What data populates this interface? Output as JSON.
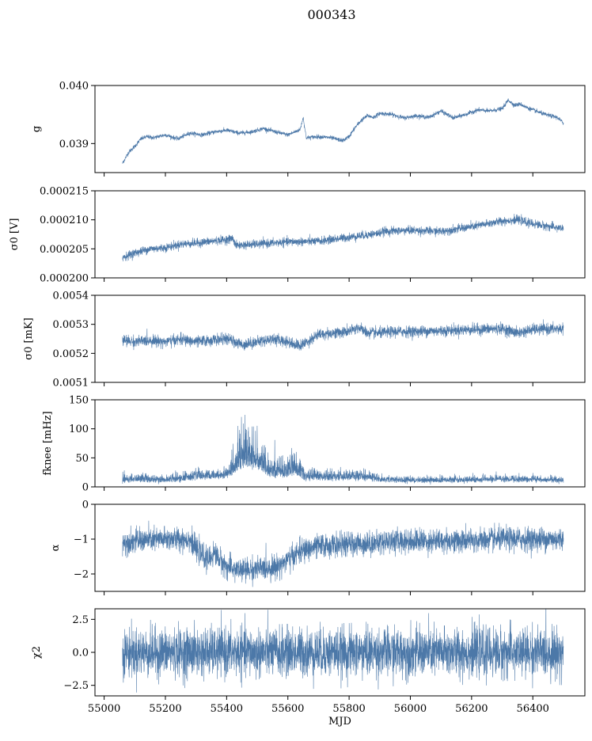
{
  "figure": {
    "title": "000343"
  },
  "colors": {
    "series": "#4c78a8",
    "frame": "#000000",
    "background": "#ffffff"
  },
  "chart_data": [
    {
      "type": "line",
      "ylabel": "g",
      "ylim": [
        0.0385,
        0.04
      ],
      "yticks": [
        0.039,
        0.04
      ],
      "ytick_labels": [
        "0.039",
        "0.040"
      ],
      "xlim": [
        54970,
        56570
      ],
      "xticks": [
        55000,
        55200,
        55400,
        55600,
        55800,
        56000,
        56200,
        56400
      ],
      "xtick_labels": [],
      "grid": false,
      "series": [
        {
          "x": [
            55060,
            55080,
            55100,
            55120,
            55140,
            55160,
            55200,
            55240,
            55280,
            55320,
            55360,
            55400,
            55440,
            55480,
            55520,
            55560,
            55600,
            55640,
            55650,
            55660,
            55700,
            55740,
            55780,
            55800,
            55820,
            55840,
            55860,
            55880,
            55900,
            55940,
            55980,
            56020,
            56060,
            56100,
            56140,
            56180,
            56220,
            56260,
            56300,
            56320,
            56340,
            56360,
            56380,
            56400,
            56440,
            56480,
            56500
          ],
          "y": [
            0.03866,
            0.03885,
            0.03895,
            0.03908,
            0.03912,
            0.0391,
            0.03915,
            0.03908,
            0.03918,
            0.03915,
            0.0392,
            0.03923,
            0.03918,
            0.0392,
            0.03926,
            0.0392,
            0.03915,
            0.03924,
            0.03945,
            0.0391,
            0.03912,
            0.0391,
            0.03905,
            0.03912,
            0.03928,
            0.0394,
            0.03948,
            0.03945,
            0.03952,
            0.0395,
            0.03944,
            0.03948,
            0.03945,
            0.03956,
            0.03944,
            0.0395,
            0.03958,
            0.03956,
            0.0396,
            0.03975,
            0.03966,
            0.03968,
            0.03962,
            0.03958,
            0.0395,
            0.03945,
            0.03935
          ]
        }
      ],
      "noise": 3e-05
    },
    {
      "type": "line",
      "ylabel": "σ0 [V]",
      "ylim": [
        0.0002,
        0.000215
      ],
      "yticks": [
        0.0002,
        0.000205,
        0.00021,
        0.000215
      ],
      "ytick_labels": [
        "0.000200",
        "0.000205",
        "0.000210",
        "0.000215"
      ],
      "xlim": [
        54970,
        56570
      ],
      "xticks": [
        55000,
        55200,
        55400,
        55600,
        55800,
        56000,
        56200,
        56400
      ],
      "xtick_labels": [],
      "grid": false,
      "series": [
        {
          "x": [
            55060,
            55100,
            55150,
            55200,
            55250,
            55300,
            55350,
            55400,
            55420,
            55430,
            55500,
            55600,
            55700,
            55800,
            55900,
            55910,
            56000,
            56100,
            56200,
            56300,
            56350,
            56400,
            56500
          ],
          "y": [
            0.0002035,
            0.0002043,
            0.000205,
            0.0002052,
            0.0002058,
            0.000206,
            0.0002063,
            0.0002066,
            0.0002068,
            0.0002056,
            0.0002058,
            0.0002062,
            0.0002063,
            0.000207,
            0.0002077,
            0.000208,
            0.0002082,
            0.000208,
            0.0002088,
            0.0002098,
            0.00021,
            0.0002093,
            0.0002085
          ]
        }
      ],
      "noise": 6e-07
    },
    {
      "type": "line",
      "ylabel": "σ0 [mK]",
      "ylim": [
        0.0051,
        0.0054
      ],
      "yticks": [
        0.0051,
        0.0052,
        0.0053,
        0.0054
      ],
      "ytick_labels": [
        "0.0051",
        "0.0052",
        "0.0053",
        "0.0054"
      ],
      "xlim": [
        54970,
        56570
      ],
      "xticks": [
        55000,
        55200,
        55400,
        55600,
        55800,
        56000,
        56200,
        56400
      ],
      "xtick_labels": [],
      "grid": false,
      "series": [
        {
          "x": [
            55060,
            55100,
            55150,
            55200,
            55250,
            55300,
            55350,
            55400,
            55450,
            55500,
            55550,
            55600,
            55640,
            55700,
            55750,
            55800,
            55830,
            55860,
            55900,
            55950,
            56000,
            56100,
            56200,
            56300,
            56350,
            56400,
            56500
          ],
          "y": [
            0.005245,
            0.00524,
            0.005245,
            0.00524,
            0.005248,
            0.00524,
            0.005245,
            0.00525,
            0.00523,
            0.00524,
            0.00525,
            0.00524,
            0.005225,
            0.005265,
            0.00527,
            0.005275,
            0.00529,
            0.00527,
            0.00527,
            0.005275,
            0.005275,
            0.005278,
            0.005282,
            0.005285,
            0.00527,
            0.005282,
            0.005285
          ]
        }
      ],
      "noise": 1.6e-05
    },
    {
      "type": "line",
      "ylabel": "fknee [mHz]",
      "ylim": [
        0,
        150
      ],
      "yticks": [
        0,
        50,
        100,
        150
      ],
      "ytick_labels": [
        "0",
        "50",
        "100",
        "150"
      ],
      "xlim": [
        54970,
        56570
      ],
      "xticks": [
        55000,
        55200,
        55400,
        55600,
        55800,
        56000,
        56200,
        56400
      ],
      "xtick_labels": [],
      "grid": false,
      "series": [
        {
          "x": [
            55060,
            55100,
            55200,
            55250,
            55300,
            55350,
            55400,
            55430,
            55460,
            55500,
            55540,
            55580,
            55620,
            55660,
            55700,
            55760,
            55820,
            55860,
            55900,
            55950,
            56000,
            56100,
            56200,
            56300,
            56400,
            56500
          ],
          "y": [
            9,
            9,
            9,
            10,
            13,
            14,
            14,
            25,
            35,
            30,
            18,
            15,
            20,
            12,
            13,
            12,
            13,
            12,
            10,
            9,
            9,
            9,
            9,
            10,
            10,
            9
          ],
          "spike_amplitude": [
            8,
            8,
            6,
            8,
            10,
            10,
            12,
            30,
            40,
            35,
            20,
            18,
            25,
            10,
            10,
            10,
            10,
            10,
            6,
            5,
            5,
            5,
            5,
            6,
            5,
            5
          ]
        }
      ],
      "noise": 4
    },
    {
      "type": "line",
      "ylabel": "α",
      "ylim": [
        -2.5,
        0
      ],
      "yticks": [
        -2,
        -1,
        0
      ],
      "ytick_labels": [
        "−2",
        "−1",
        "0"
      ],
      "xlim": [
        54970,
        56570
      ],
      "xticks": [
        55000,
        55200,
        55400,
        55600,
        55800,
        56000,
        56200,
        56400
      ],
      "xtick_labels": [],
      "grid": false,
      "series": [
        {
          "x": [
            55060,
            55100,
            55200,
            55280,
            55300,
            55340,
            55360,
            55400,
            55450,
            55500,
            55560,
            55600,
            55640,
            55700,
            55800,
            55900,
            55920,
            56000,
            56100,
            56200,
            56300,
            56400,
            56500
          ],
          "y": [
            -1.1,
            -1.05,
            -1.0,
            -1.0,
            -1.3,
            -1.6,
            -1.4,
            -1.8,
            -1.9,
            -1.85,
            -1.8,
            -1.6,
            -1.35,
            -1.2,
            -1.15,
            -1.1,
            -1.05,
            -1.05,
            -1.05,
            -1.05,
            -1.0,
            -1.0,
            -1.0
          ]
        }
      ],
      "noise": 0.28
    },
    {
      "type": "line",
      "ylabel": "χ2",
      "ylim": [
        -3.3,
        3.3
      ],
      "yticks": [
        -2.5,
        0.0,
        2.5
      ],
      "ytick_labels": [
        "−2.5",
        "0.0",
        "2.5"
      ],
      "xlim": [
        54970,
        56570
      ],
      "xticks": [
        55000,
        55200,
        55400,
        55600,
        55800,
        56000,
        56200,
        56400
      ],
      "xtick_labels": [
        "55000",
        "55200",
        "55400",
        "55600",
        "55800",
        "56000",
        "56200",
        "56400"
      ],
      "xlabel": "MJD",
      "grid": false,
      "series": [
        {
          "x": [
            55060,
            56500
          ],
          "y": [
            0.0,
            0.0
          ]
        }
      ],
      "noise": 1.5
    }
  ]
}
